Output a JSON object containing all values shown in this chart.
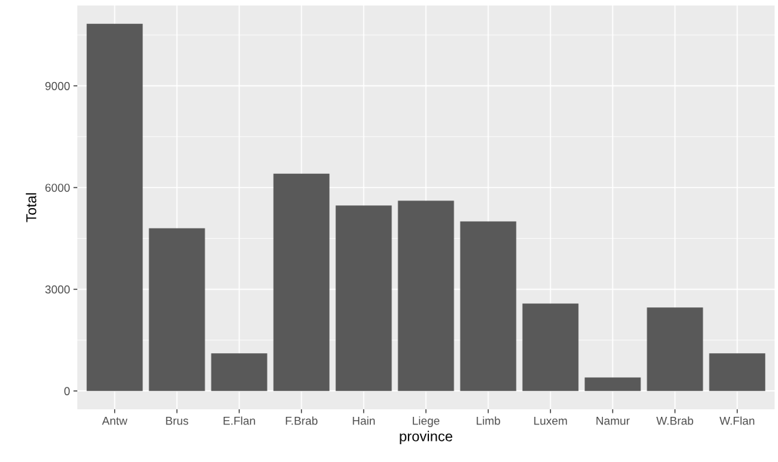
{
  "chart_data": {
    "type": "bar",
    "xlabel": "province",
    "ylabel": "Total",
    "categories": [
      "Antw",
      "Brus",
      "E.Flan",
      "F.Brab",
      "Hain",
      "Liege",
      "Limb",
      "Luxem",
      "Namur",
      "W.Brab",
      "W.Flan"
    ],
    "values": [
      10830,
      4800,
      1110,
      6410,
      5470,
      5610,
      5000,
      2580,
      400,
      2460,
      1110
    ],
    "color": "#595959",
    "ylim": [
      -541,
      11371
    ],
    "yticks": [
      0,
      3000,
      6000,
      9000
    ],
    "grid": true,
    "legend": false
  }
}
